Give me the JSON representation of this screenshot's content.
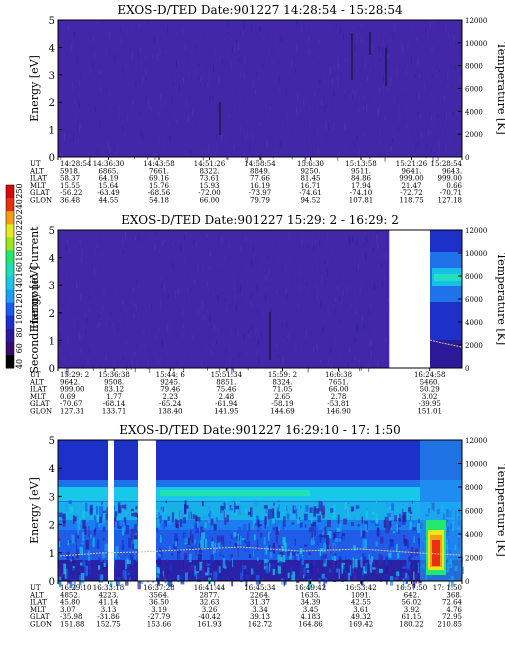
{
  "chart_data": [
    {
      "type": "heatmap",
      "title": "EXOS-D/TED   Date:901227  14:28:54 - 15:28:54",
      "ylabel": "Energy [eV]",
      "y2label": "Temperature [K]",
      "ylim": [
        0,
        5
      ],
      "y2lim": [
        0,
        12000
      ],
      "yticks": [
        "0",
        "1",
        "2",
        "3",
        "4",
        "5"
      ],
      "y2ticks": [
        "0",
        "2000",
        "4000",
        "6000",
        "8000",
        "10000",
        "12000"
      ],
      "coverage_start": 0.0,
      "coverage_end": 1.0,
      "orbit": {
        "labels": [
          "UT",
          "ALT",
          "ILAT",
          "MLT",
          "GLAT",
          "GLON"
        ],
        "columns": [
          [
            "14:28:54",
            "5918.",
            "58.37",
            "15.55",
            "-56.22",
            "36.48"
          ],
          [
            "14:36:30",
            "6865.",
            "64.19",
            "15.64",
            "-63.49",
            "44.55"
          ],
          [
            "14:43:58",
            "7661.",
            "69.16",
            "15.76",
            "-68.56",
            "54.18"
          ],
          [
            "14:51:26",
            "8322.",
            "73.61",
            "15.93",
            "-72.00",
            "66.00"
          ],
          [
            "14:58:54",
            "8849.",
            "77.66",
            "16.19",
            "-73.97",
            "79.79"
          ],
          [
            "15:6:30",
            "9250.",
            "81.45",
            "16.71",
            "-74.61",
            "94.52"
          ],
          [
            "15:13:58",
            "9511.",
            "84.86",
            "17.94",
            "-74.10",
            "107.81"
          ],
          [
            "15:21:26",
            "9641.",
            "999.00",
            "21.47",
            "-72.72",
            "118.75"
          ],
          [
            "15:28:54",
            "9643.",
            "999.00",
            "0.66",
            "-70.71",
            "127.18"
          ]
        ]
      }
    },
    {
      "type": "heatmap",
      "title": "EXOS-D/TED   Date:901227  15:29: 2 - 16:29: 2",
      "ylabel": "Energy [eV]",
      "y2label": "Temperature [K]",
      "ylim": [
        0,
        5
      ],
      "y2lim": [
        0,
        12000
      ],
      "yticks": [
        "0",
        "1",
        "2",
        "3",
        "4",
        "5"
      ],
      "y2ticks": [
        "0",
        "2000",
        "4000",
        "6000",
        "8000",
        "10000",
        "12000"
      ],
      "coverage_start": 0.0,
      "coverage_end": 0.82,
      "orbit": {
        "labels": [
          "UT",
          "ALT",
          "ILAT",
          "MLT",
          "GLAT",
          "GLON"
        ],
        "columns": [
          [
            "15:29: 2",
            "9642.",
            "999.00",
            "0.69",
            "-70.67",
            "127.31"
          ],
          [
            "15:36:38",
            "9508.",
            "83.12",
            "1.77",
            "-68.14",
            "133.71"
          ],
          [
            "15:44: 6",
            "9245.",
            "79.46",
            "2.23",
            "-65.24",
            "138.40"
          ],
          [
            "15:51:34",
            "8851.",
            "75.46",
            "2.48",
            "-61.94",
            "141.95"
          ],
          [
            "15:59: 2",
            "8324.",
            "71.05",
            "2.65",
            "-58.19",
            "144.69"
          ],
          [
            "16:6:38",
            "7651.",
            "66.00",
            "2.78",
            "-53.81",
            "146.90"
          ],
          [
            "16:24:58",
            "5460.",
            "50.29",
            "3.02",
            "-39.95",
            "151.01"
          ]
        ]
      }
    },
    {
      "type": "heatmap",
      "title": "EXOS-D/TED   Date:901227  16:29:10 - 17: 1:50",
      "ylabel": "Energy [eV]",
      "y2label": "Temperature [K]",
      "ylim": [
        0,
        5
      ],
      "y2lim": [
        0,
        12000
      ],
      "yticks": [
        "0",
        "1",
        "2",
        "3",
        "4",
        "5"
      ],
      "y2ticks": [
        "0",
        "2000",
        "4000",
        "6000",
        "8000",
        "10000",
        "12000"
      ],
      "coverage_start": 0.0,
      "coverage_end": 1.0,
      "orbit": {
        "labels": [
          "UT",
          "ALT",
          "ILAT",
          "MLT",
          "GLAT",
          "GLON"
        ],
        "columns": [
          [
            "16:29:10",
            "4852.",
            "45.80",
            "3.07",
            "-35.98",
            "151.88"
          ],
          [
            "16:33:18",
            "4223.",
            "41.14",
            "3.13",
            "-31.86",
            "152.75"
          ],
          [
            "16:37:28",
            "3564.",
            "36.50",
            "3.19",
            "-27.79",
            "153.66"
          ],
          [
            "16:41:44",
            "2877.",
            "32.63",
            "3.26",
            "-40.42",
            "161.93"
          ],
          [
            "16:45:34",
            "2264.",
            "31.37",
            "3.34",
            "39.13",
            "162.72"
          ],
          [
            "16:49:42",
            "1635.",
            "34.39",
            "3.45",
            "4.183",
            "164.86"
          ],
          [
            "16:53:42",
            "1091.",
            "42.55",
            "3.61",
            "49.32",
            "169.42"
          ],
          [
            "16:57:50",
            "642.",
            "56.02",
            "3.92",
            "61.15",
            "180.22"
          ],
          [
            "17: 1:50",
            "368.",
            "72.64",
            "4.76",
            "72.95",
            "210.85"
          ]
        ]
      }
    }
  ],
  "colorbar": {
    "label": "Second Harmonic Current",
    "ticks": [
      "40",
      "60",
      "80",
      "100",
      "120",
      "140",
      "160",
      "180",
      "200",
      "220",
      "240",
      "250"
    ],
    "colors": [
      "#000000",
      "#3a0b6e",
      "#2a1a9a",
      "#1d30c8",
      "#1a5cf0",
      "#1f9ef5",
      "#18c8e8",
      "#18e0b8",
      "#22e870",
      "#9be81a",
      "#e8e81a",
      "#f0a010",
      "#e83010",
      "#d80808"
    ]
  }
}
